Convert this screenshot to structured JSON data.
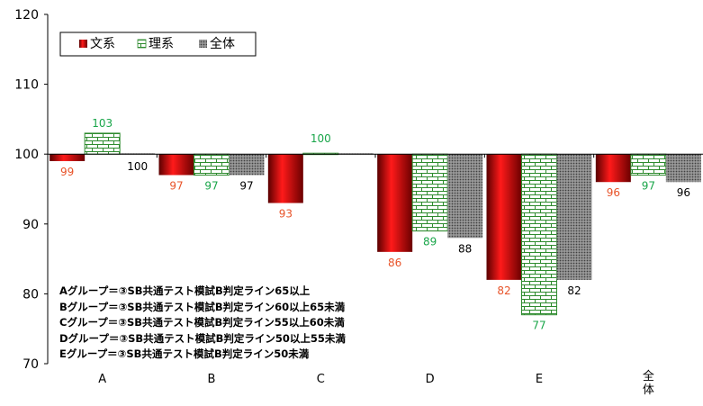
{
  "chart_data": {
    "type": "bar",
    "title": "",
    "xlabel": "",
    "ylabel": "",
    "ylim": [
      70,
      120
    ],
    "baseline": 100,
    "yticks": [
      "70",
      "80",
      "90",
      "100",
      "110",
      "120"
    ],
    "grid": false,
    "legend_position": "top-left",
    "categories": [
      "A",
      "B",
      "C",
      "D",
      "E",
      "全体"
    ],
    "series": [
      {
        "name": "文系",
        "values": [
          99,
          97,
          93,
          86,
          82,
          96
        ],
        "value_labels": [
          "99",
          "97",
          "93",
          "86",
          "82",
          "96"
        ],
        "pattern": "red-gradient"
      },
      {
        "name": "理系",
        "values": [
          103,
          97,
          100,
          89,
          77,
          97
        ],
        "value_labels": [
          "103",
          "97",
          "100",
          "89",
          "77",
          "97"
        ],
        "pattern": "green-brick"
      },
      {
        "name": "全体",
        "values": [
          100,
          97,
          100,
          88,
          82,
          96
        ],
        "value_labels": [
          "100",
          "97",
          "",
          "88",
          "82",
          "96"
        ],
        "pattern": "gray-dots"
      }
    ],
    "annotations": [
      "Aグループ＝③SB共通テスト模試B判定ライン65以上",
      "Bグループ＝③SB共通テスト模試B判定ライン60以上65未満",
      "Cグループ＝③SB共通テスト模試B判定ライン55以上60未満",
      "Dグループ＝③SB共通テスト模試B判定ライン50以上55未満",
      "Eグループ＝③SB共通テスト模試B判定ライン50未満"
    ],
    "colors": {
      "bunkei": "#cc0000",
      "bunkei_label": "#e8542a",
      "rikei": "#2e8b2e",
      "rikei_label": "#1aa64a",
      "zentai": "#7f7f7f",
      "zentai_label": "#000000",
      "axis": "#000000"
    }
  }
}
